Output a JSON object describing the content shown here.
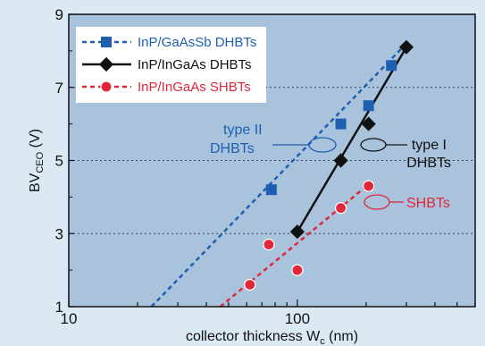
{
  "chart_data": {
    "type": "scatter",
    "xscale": "log",
    "xlim": [
      10,
      600
    ],
    "ylim": [
      1,
      9
    ],
    "xticks": [
      10,
      100
    ],
    "yticks": [
      1,
      3,
      5,
      7,
      9
    ],
    "xlabel": "collector thickness W",
    "xlabel_sub": "c",
    "xlabel_unit": " (nm)",
    "ylabel": "BV",
    "ylabel_sub": "CEO",
    "ylabel_unit": " (V)",
    "grid": "y-dashed",
    "legend_position": "top-left",
    "series": [
      {
        "name": "InP/GaAsSb DHBTs",
        "color": "#1f5fb0",
        "marker": "square",
        "line": "dashed",
        "points": [
          [
            77,
            4.2
          ],
          [
            155,
            6.0
          ],
          [
            205,
            6.5
          ],
          [
            258,
            7.6
          ]
        ],
        "fit": [
          [
            23,
            1.0
          ],
          [
            300,
            8.2
          ]
        ]
      },
      {
        "name": "InP/InGaAs DHBTs",
        "color": "#111111",
        "marker": "diamond",
        "line": "solid",
        "points": [
          [
            100,
            3.05
          ],
          [
            155,
            5.0
          ],
          [
            205,
            6.0
          ],
          [
            300,
            8.1
          ]
        ],
        "fit": [
          [
            100,
            3.05
          ],
          [
            300,
            8.1
          ]
        ]
      },
      {
        "name": "InP/InGaAs SHBTs",
        "color": "#e0283a",
        "marker": "circle",
        "line": "dashed",
        "points": [
          [
            62,
            1.6
          ],
          [
            75,
            2.7
          ],
          [
            100,
            2.0
          ],
          [
            155,
            3.7
          ],
          [
            205,
            4.3
          ]
        ],
        "fit": [
          [
            46,
            1.0
          ],
          [
            210,
            4.4
          ]
        ]
      }
    ],
    "annotations": [
      {
        "lines": [
          "type II",
          "DHBTs"
        ],
        "color": "#1f5fb0"
      },
      {
        "lines": [
          "type I",
          "DHBTs"
        ],
        "color": "#111111"
      },
      {
        "lines": [
          "SHBTs"
        ],
        "color": "#e0283a"
      }
    ]
  }
}
